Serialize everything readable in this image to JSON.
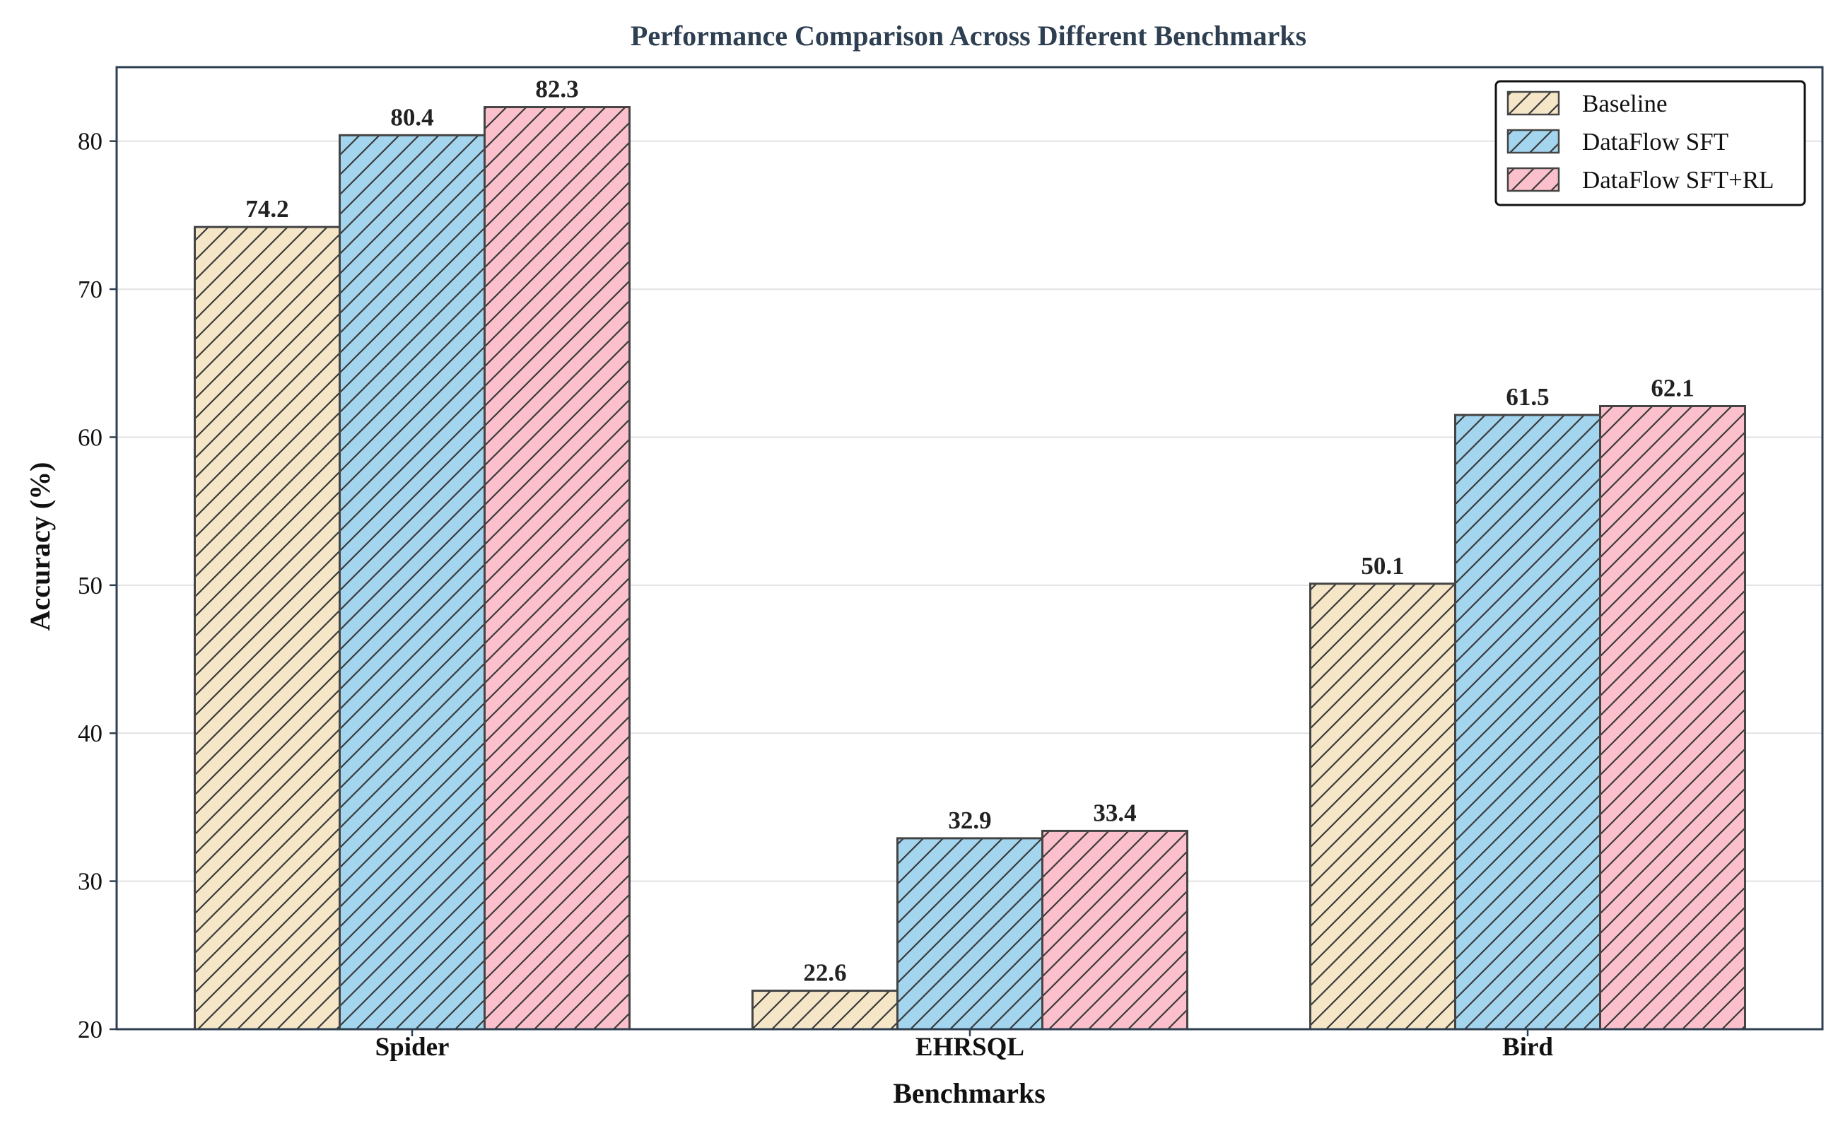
{
  "chart_data": {
    "type": "bar",
    "title": "Performance Comparison Across Different Benchmarks",
    "xlabel": "Benchmarks",
    "ylabel": "Accuracy (%)",
    "categories": [
      "Spider",
      "EHRSQL",
      "Bird"
    ],
    "series": [
      {
        "name": "Baseline",
        "values": [
          74.2,
          22.6,
          50.1
        ],
        "color": "#f5e6c8"
      },
      {
        "name": "DataFlow SFT",
        "values": [
          80.4,
          32.9,
          61.5
        ],
        "color": "#a3d5ee"
      },
      {
        "name": "DataFlow SFT+RL",
        "values": [
          82.3,
          33.4,
          62.1
        ],
        "color": "#fbc0cc"
      }
    ],
    "ylim": [
      20,
      85
    ],
    "yticks": [
      20,
      30,
      40,
      50,
      60,
      70,
      80
    ],
    "value_labels": [
      [
        "74.2",
        "22.6",
        "50.1"
      ],
      [
        "80.4",
        "32.9",
        "61.5"
      ],
      [
        "82.3",
        "33.4",
        "62.1"
      ]
    ],
    "grid": "horizontal",
    "hatch": "diagonal",
    "legend_position": "top-right"
  },
  "colors": {
    "title": "#2e3f52",
    "axis_frame": "#2e3f52",
    "bar_edge": "#444444",
    "hatch_line": "#3a3a3a",
    "grid": "#e2e2e2"
  }
}
